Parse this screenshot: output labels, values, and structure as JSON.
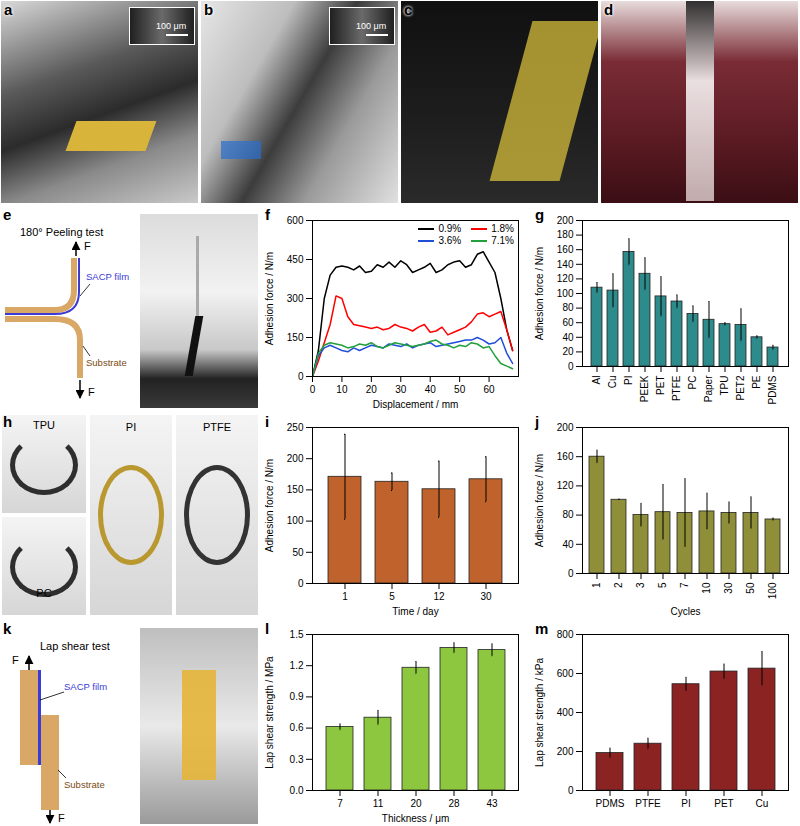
{
  "figure": {
    "photos": [
      {
        "panel": "a",
        "scale_bar": "100 μm"
      },
      {
        "panel": "b",
        "scale_bar": "100 μm"
      },
      {
        "panel": "c"
      },
      {
        "panel": "d"
      }
    ],
    "diagrams": [
      {
        "panel": "e",
        "title": "180° Peeling test",
        "film": "SACP film",
        "substrate": "Substrate",
        "force": "F"
      },
      {
        "panel": "h",
        "samples": [
          "TPU",
          "PC",
          "PI",
          "PTFE"
        ]
      },
      {
        "panel": "k",
        "title": "Lap shear test",
        "film": "SACP film",
        "substrate": "Substrate",
        "force": "F"
      }
    ]
  },
  "chart_data": [
    {
      "panel": "f",
      "type": "line",
      "x_label": "Displacement / mm",
      "y_label": "Adhesion force / N/m",
      "x": [
        0,
        2,
        4,
        6,
        8,
        10,
        12,
        14,
        16,
        18,
        20,
        22,
        24,
        26,
        28,
        30,
        32,
        34,
        36,
        38,
        40,
        42,
        44,
        46,
        48,
        50,
        52,
        54,
        56,
        58,
        60,
        62,
        64,
        66,
        68
      ],
      "series": [
        {
          "name": "0.9%",
          "color": "#000000",
          "values": [
            0,
            100,
            300,
            390,
            420,
            425,
            420,
            410,
            425,
            400,
            405,
            430,
            420,
            440,
            420,
            445,
            430,
            400,
            410,
            420,
            435,
            400,
            410,
            430,
            440,
            445,
            420,
            430,
            470,
            480,
            440,
            400,
            300,
            180,
            100
          ]
        },
        {
          "name": "1.8%",
          "color": "#ff0000",
          "values": [
            0,
            60,
            130,
            200,
            310,
            300,
            230,
            200,
            195,
            190,
            185,
            190,
            180,
            185,
            200,
            190,
            185,
            175,
            190,
            200,
            170,
            175,
            190,
            160,
            170,
            180,
            190,
            210,
            240,
            245,
            230,
            240,
            250,
            180,
            100
          ]
        },
        {
          "name": "3.6%",
          "color": "#1f4ed8",
          "values": [
            0,
            80,
            110,
            120,
            110,
            100,
            95,
            110,
            100,
            110,
            120,
            115,
            110,
            125,
            120,
            115,
            125,
            110,
            120,
            125,
            130,
            115,
            120,
            125,
            130,
            135,
            140,
            140,
            150,
            140,
            125,
            130,
            150,
            90,
            50
          ]
        },
        {
          "name": "7.1%",
          "color": "#22a03c",
          "values": [
            0,
            90,
            120,
            130,
            125,
            120,
            110,
            115,
            125,
            120,
            130,
            115,
            110,
            120,
            130,
            125,
            120,
            115,
            120,
            125,
            135,
            140,
            125,
            120,
            110,
            120,
            115,
            130,
            125,
            110,
            115,
            80,
            50,
            40,
            30
          ]
        }
      ],
      "xlim": [
        0,
        70
      ],
      "xticks": [
        0,
        10,
        20,
        30,
        40,
        50,
        60
      ],
      "ylim": [
        0,
        600
      ],
      "yticks": [
        0,
        150,
        300,
        450,
        600
      ],
      "legend": "top-right",
      "grid": false
    },
    {
      "panel": "g",
      "type": "bar",
      "y_label": "Adhesion force / N/m",
      "categories": [
        "Al",
        "Cu",
        "PI",
        "PEEK",
        "PET",
        "PTFE",
        "PC",
        "Paper",
        "TPU",
        "PET2",
        "PE",
        "PDMS"
      ],
      "values": [
        108,
        104,
        157,
        127,
        96,
        89,
        72,
        64,
        58,
        57,
        40,
        26
      ],
      "errors": [
        7,
        23,
        18,
        22,
        27,
        9,
        11,
        25,
        2,
        22,
        2,
        3
      ],
      "color": "#2e8b8b",
      "ylim": [
        0,
        200
      ],
      "yticks": [
        0,
        20,
        40,
        60,
        80,
        100,
        120,
        140,
        160,
        180,
        200
      ],
      "grid": false
    },
    {
      "panel": "i",
      "type": "bar",
      "x_label": "Time / day",
      "y_label": "Adhesion force / N/m",
      "categories": [
        "1",
        "5",
        "12",
        "30"
      ],
      "values": [
        171,
        163,
        151,
        167
      ],
      "errors": [
        68,
        14,
        45,
        36
      ],
      "color": "#c0622b",
      "ylim": [
        0,
        250
      ],
      "yticks": [
        0,
        50,
        100,
        150,
        200,
        250
      ],
      "grid": false
    },
    {
      "panel": "j",
      "type": "bar",
      "x_label": "Cycles",
      "y_label": "Adhesion force / N/m",
      "categories": [
        "1",
        "2",
        "3",
        "5",
        "7",
        "10",
        "30",
        "50",
        "100"
      ],
      "values": [
        160,
        101,
        80,
        84,
        83,
        85,
        83,
        83,
        74
      ],
      "errors": [
        9,
        1,
        16,
        38,
        47,
        25,
        15,
        22,
        2
      ],
      "color": "#8f8f3a",
      "ylim": [
        0,
        200
      ],
      "yticks": [
        0,
        40,
        80,
        120,
        160,
        200
      ],
      "grid": false
    },
    {
      "panel": "l",
      "type": "bar",
      "x_label": "Thickness / μm",
      "y_label": "Lap shear strength / MPa",
      "categories": [
        "7",
        "11",
        "20",
        "28",
        "43"
      ],
      "values": [
        0.61,
        0.7,
        1.18,
        1.37,
        1.35
      ],
      "errors": [
        0.03,
        0.07,
        0.06,
        0.05,
        0.06
      ],
      "color": "#8dc63f",
      "ylim": [
        0,
        1.5
      ],
      "yticks": [
        {
          "value": 0,
          "label": "0.0"
        },
        0.3,
        0.6,
        0.9,
        1.2,
        1.5
      ],
      "grid": false
    },
    {
      "panel": "m",
      "type": "bar",
      "y_label": "Lap shear strength / kPa",
      "categories": [
        "PDMS",
        "PTFE",
        "PI",
        "PET",
        "Cu"
      ],
      "values": [
        192,
        240,
        545,
        610,
        625
      ],
      "errors": [
        25,
        28,
        35,
        38,
        88
      ],
      "color": "#8b2323",
      "ylim": [
        0,
        800
      ],
      "yticks": [
        0,
        200,
        400,
        600,
        800
      ],
      "grid": false
    }
  ]
}
